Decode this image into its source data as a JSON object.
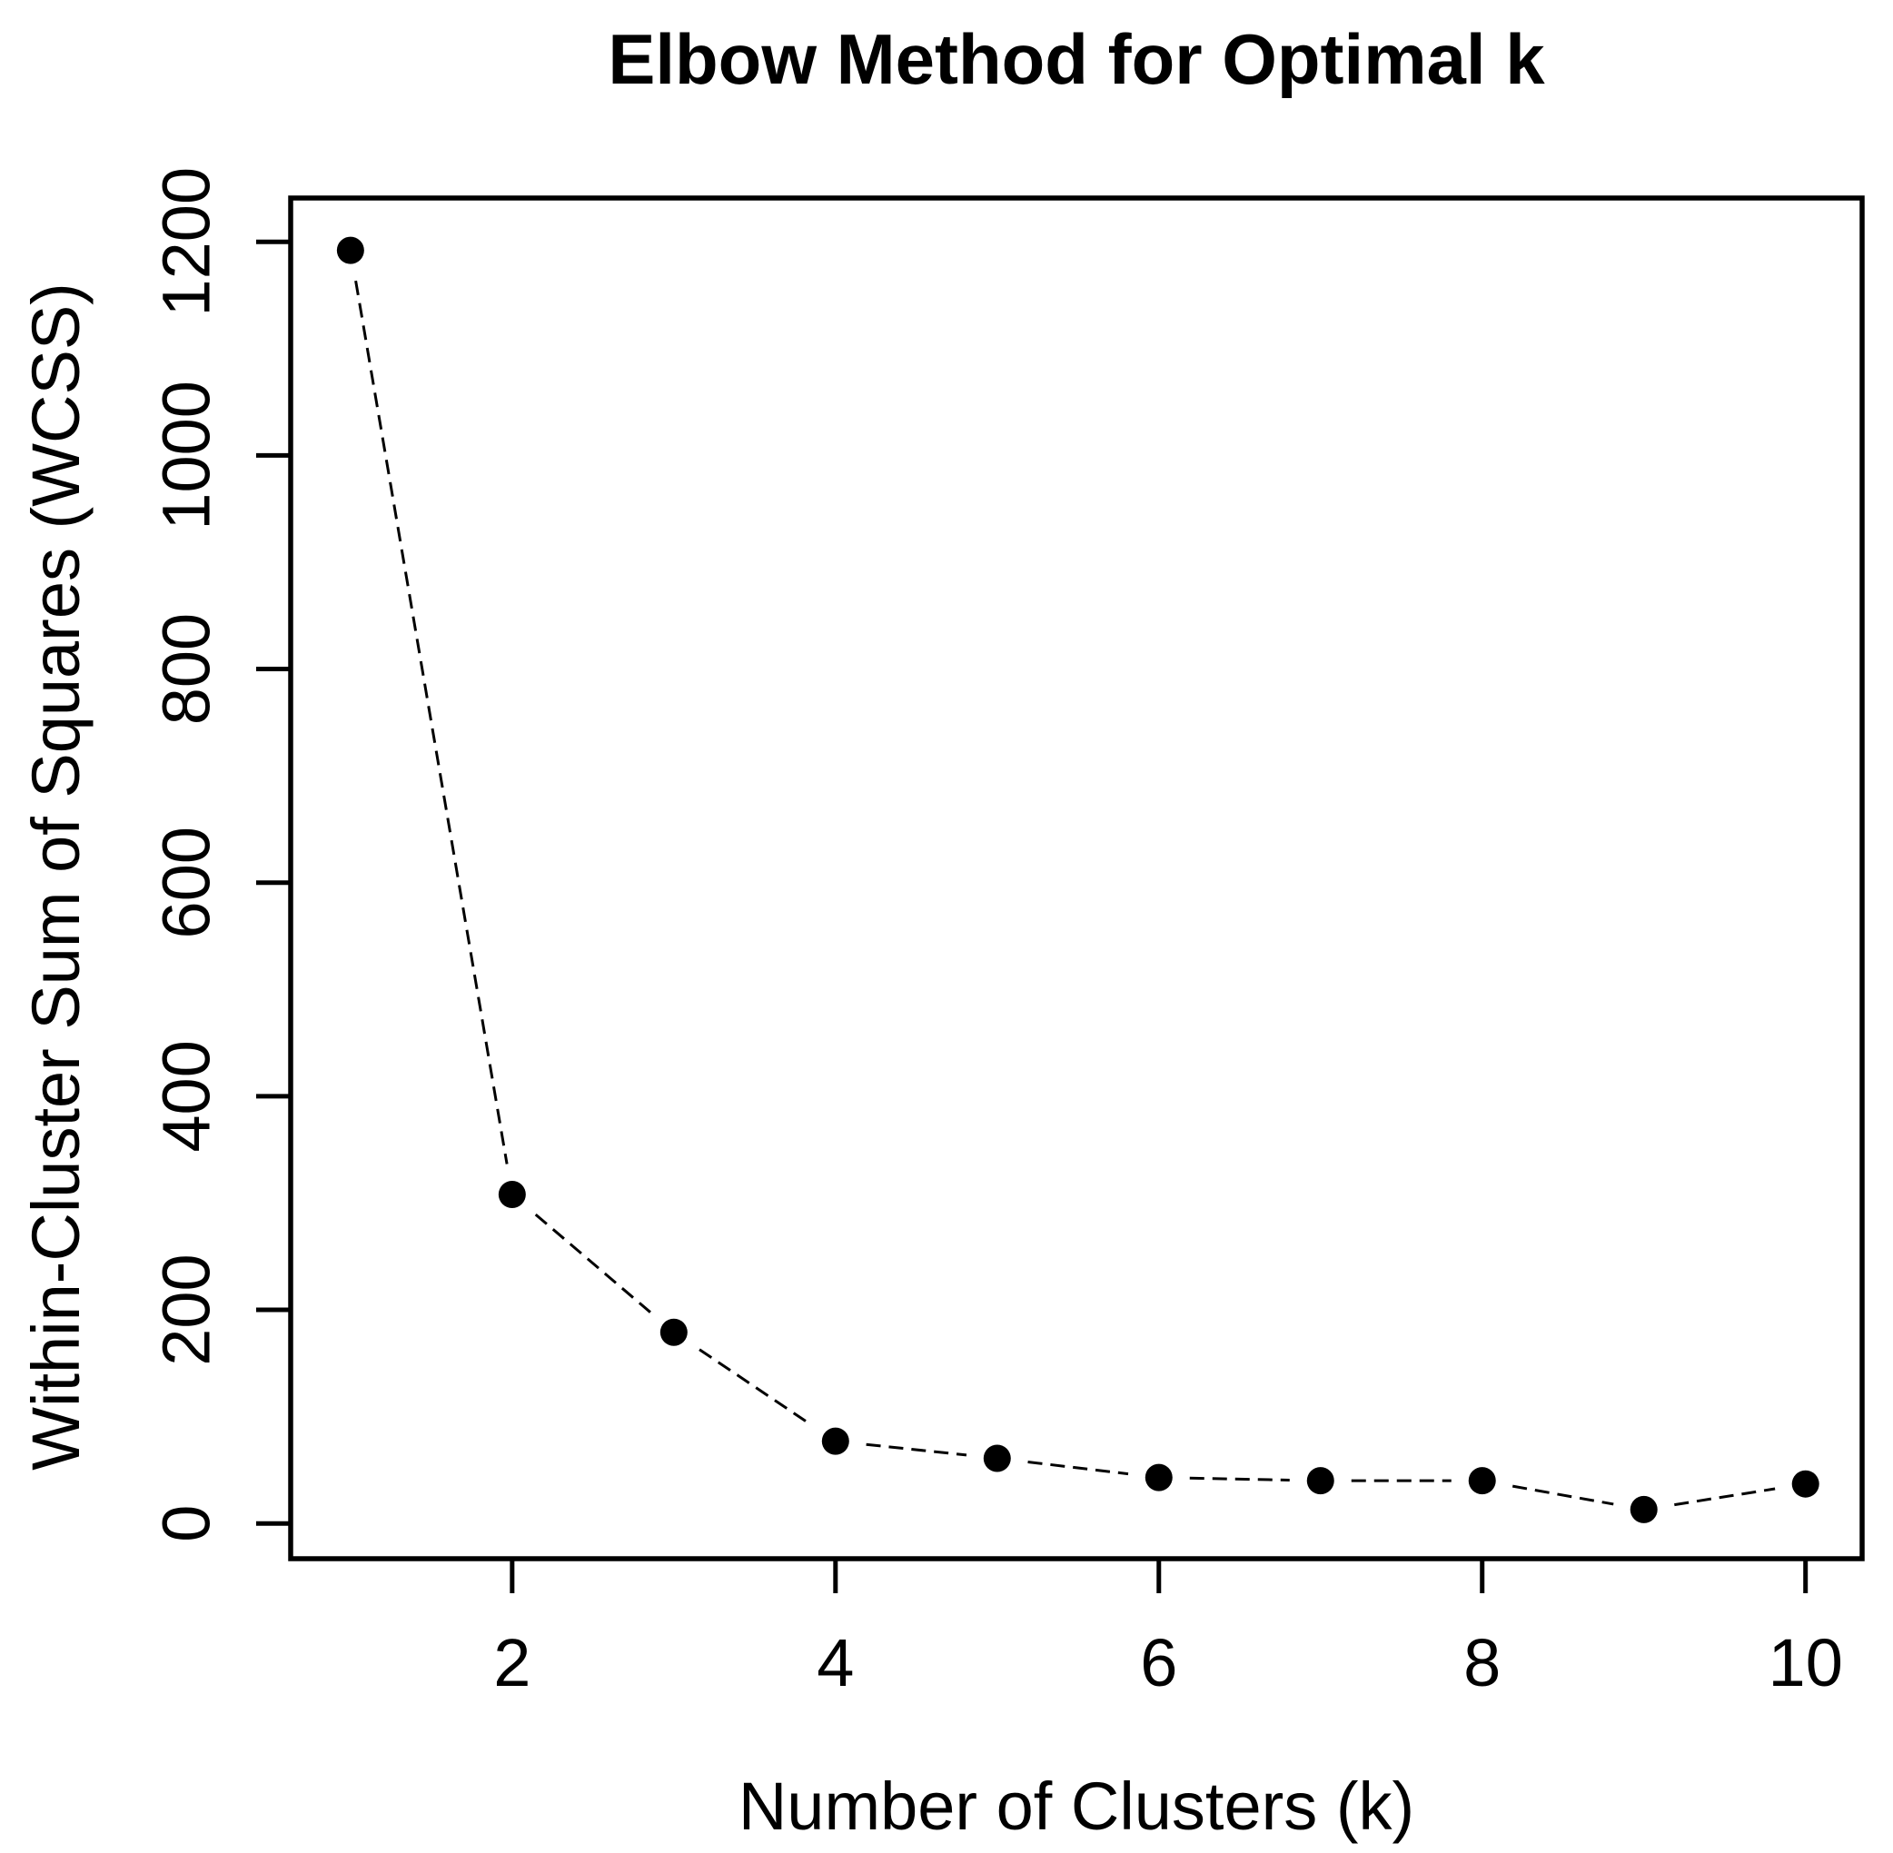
{
  "page": {
    "background": "#ffffff",
    "foreground": "#000000"
  },
  "chart_data": {
    "type": "line",
    "title": "Elbow Method for Optimal k",
    "xlabel": "Number of Clusters (k)",
    "ylabel": "Within-Cluster Sum of Squares (WCSS)",
    "x": [
      1,
      2,
      3,
      4,
      5,
      6,
      7,
      8,
      9,
      10
    ],
    "series": [
      {
        "name": "WCSS",
        "values": [
          1192,
          308,
          179,
          77,
          61,
          43,
          40,
          40,
          13,
          37
        ]
      }
    ],
    "xticks": [
      2,
      4,
      6,
      8,
      10
    ],
    "yticks": [
      0,
      200,
      400,
      600,
      800,
      1000,
      1200
    ],
    "xlim": [
      0.63,
      10.35
    ],
    "ylim": [
      -33,
      1241
    ],
    "grid": false,
    "legend": "none",
    "marker": "filled-circle",
    "line_style": "dashed",
    "color": "#000000"
  }
}
